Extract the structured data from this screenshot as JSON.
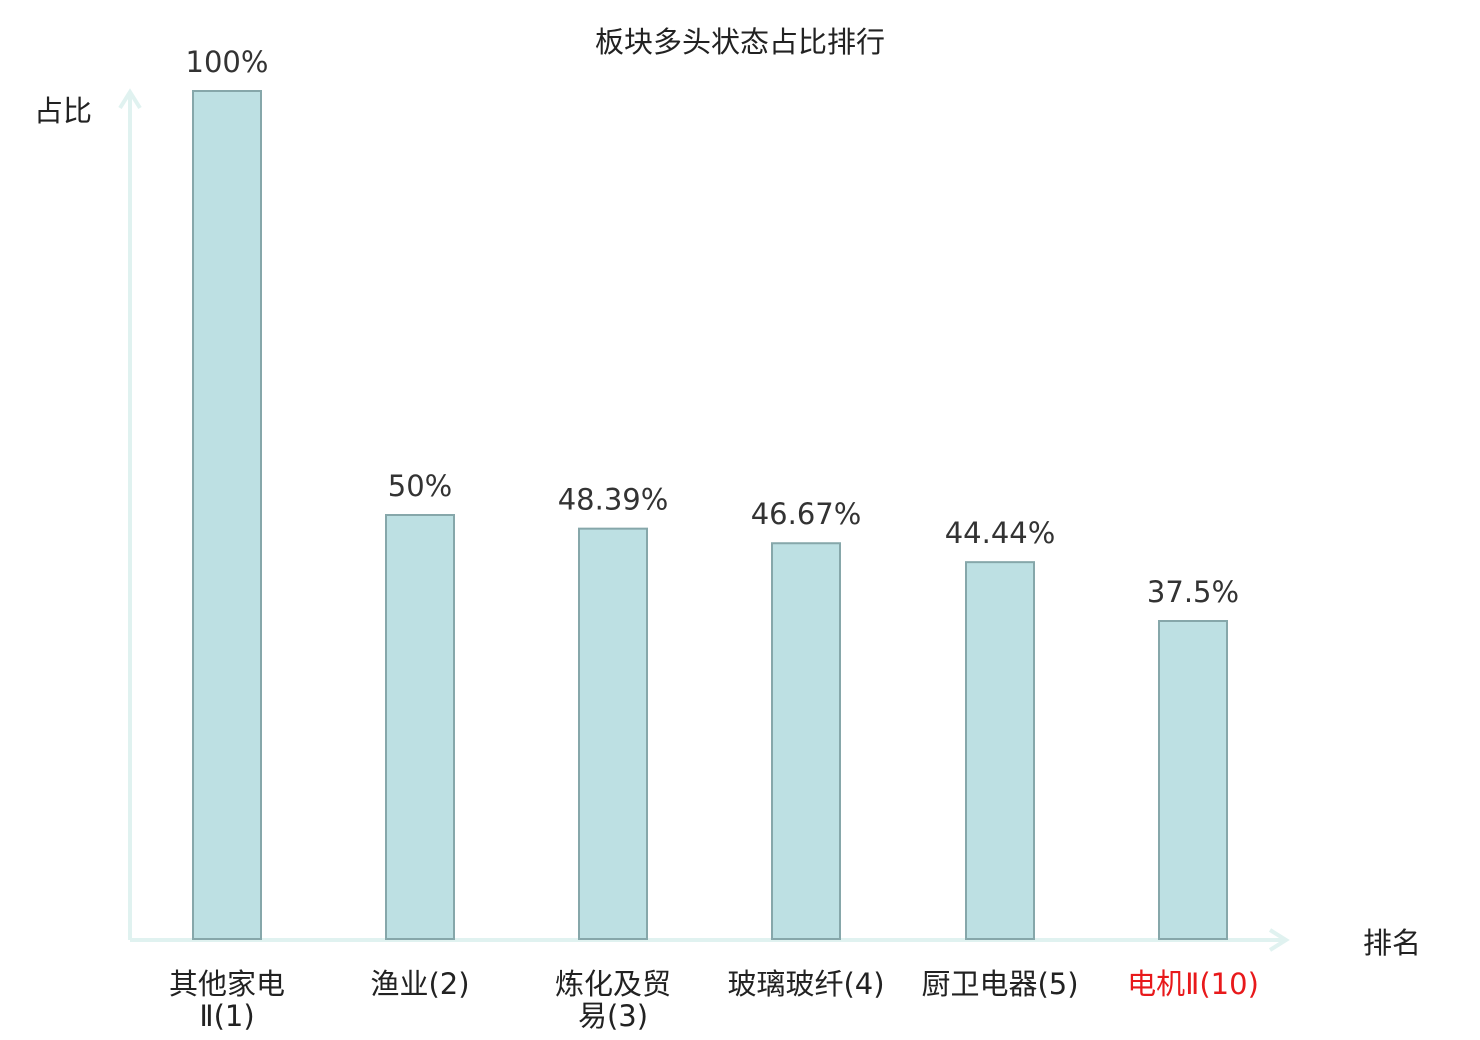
{
  "chart_data": {
    "type": "bar",
    "title": "板块多头状态占比排行",
    "ylabel": "占比",
    "xlabel": "排名",
    "categories": [
      [
        "其他家电",
        "Ⅱ(1)"
      ],
      [
        "渔业(2)"
      ],
      [
        "炼化及贸",
        "易(3)"
      ],
      [
        "玻璃玻纤(4)"
      ],
      [
        "厨卫电器(5)"
      ],
      [
        "电机Ⅱ(10)"
      ]
    ],
    "values": [
      100,
      50,
      48.39,
      46.67,
      44.44,
      37.5
    ],
    "value_labels": [
      "100%",
      "50%",
      "48.39%",
      "46.67%",
      "44.44%",
      "37.5%"
    ],
    "highlight_index": 5,
    "ylim": [
      0,
      100
    ],
    "grid": false,
    "colors": {
      "bar_fill": "#bde0e3",
      "bar_stroke": "#86a7aa",
      "axis": "#e0f2f0",
      "text": "#333333",
      "highlight_text": "#e8191b"
    }
  }
}
